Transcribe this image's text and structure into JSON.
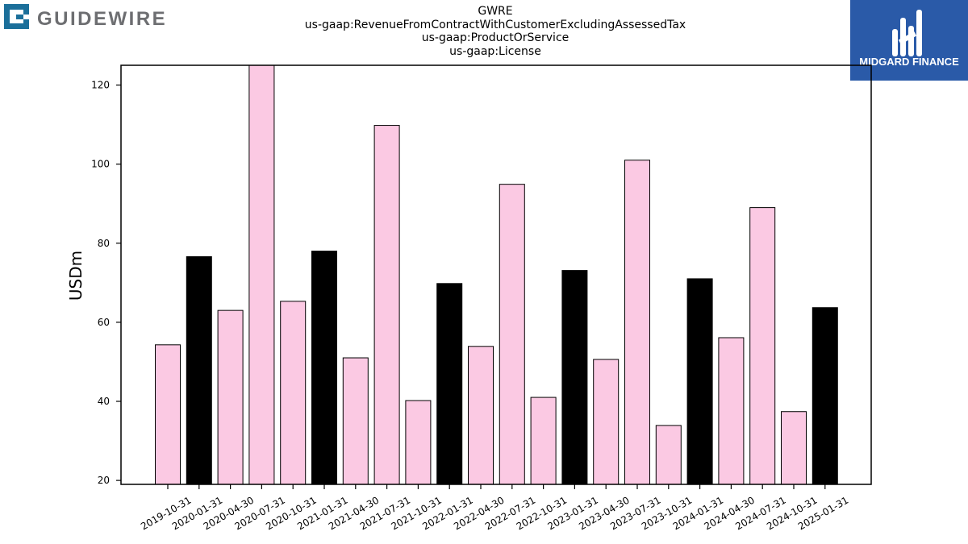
{
  "header": {
    "brand_left": "GUIDEWIRE",
    "brand_right": "MIDGARD FINANCE",
    "title_lines": [
      "GWRE",
      "us-gaap:RevenueFromContractWithCustomerExcludingAssessedTax",
      "us-gaap:ProductOrService",
      "us-gaap:License"
    ]
  },
  "colors": {
    "pink": "#fbc9e3",
    "black": "#000000",
    "brand_right_bg": "#2a5aa8",
    "brand_left_icon": "#1b6f9a",
    "brand_left_text": "#6d6e71"
  },
  "chart_data": {
    "type": "bar",
    "ylabel": "USDm",
    "xlabel": "",
    "ylim": [
      19,
      125
    ],
    "yticks": [
      20,
      40,
      60,
      80,
      100,
      120
    ],
    "grid": false,
    "categories": [
      "2019-10-31",
      "2020-01-31",
      "2020-04-30",
      "2020-07-31",
      "2020-10-31",
      "2021-01-31",
      "2021-04-30",
      "2021-07-31",
      "2021-10-31",
      "2022-01-31",
      "2022-04-30",
      "2022-07-31",
      "2022-10-31",
      "2023-01-31",
      "2023-04-30",
      "2023-07-31",
      "2023-10-31",
      "2024-01-31",
      "2024-04-30",
      "2024-07-31",
      "2024-10-31",
      "2025-01-31"
    ],
    "values": [
      54.3,
      76.6,
      63.0,
      125.5,
      65.3,
      78.0,
      51.0,
      109.8,
      40.2,
      69.8,
      53.9,
      94.9,
      41.0,
      73.1,
      50.6,
      101.0,
      33.9,
      71.0,
      56.1,
      89.0,
      37.4,
      63.7
    ],
    "bar_colors": [
      "pink",
      "black",
      "pink",
      "pink",
      "pink",
      "black",
      "pink",
      "pink",
      "pink",
      "black",
      "pink",
      "pink",
      "pink",
      "black",
      "pink",
      "pink",
      "pink",
      "black",
      "pink",
      "pink",
      "pink",
      "black"
    ]
  }
}
